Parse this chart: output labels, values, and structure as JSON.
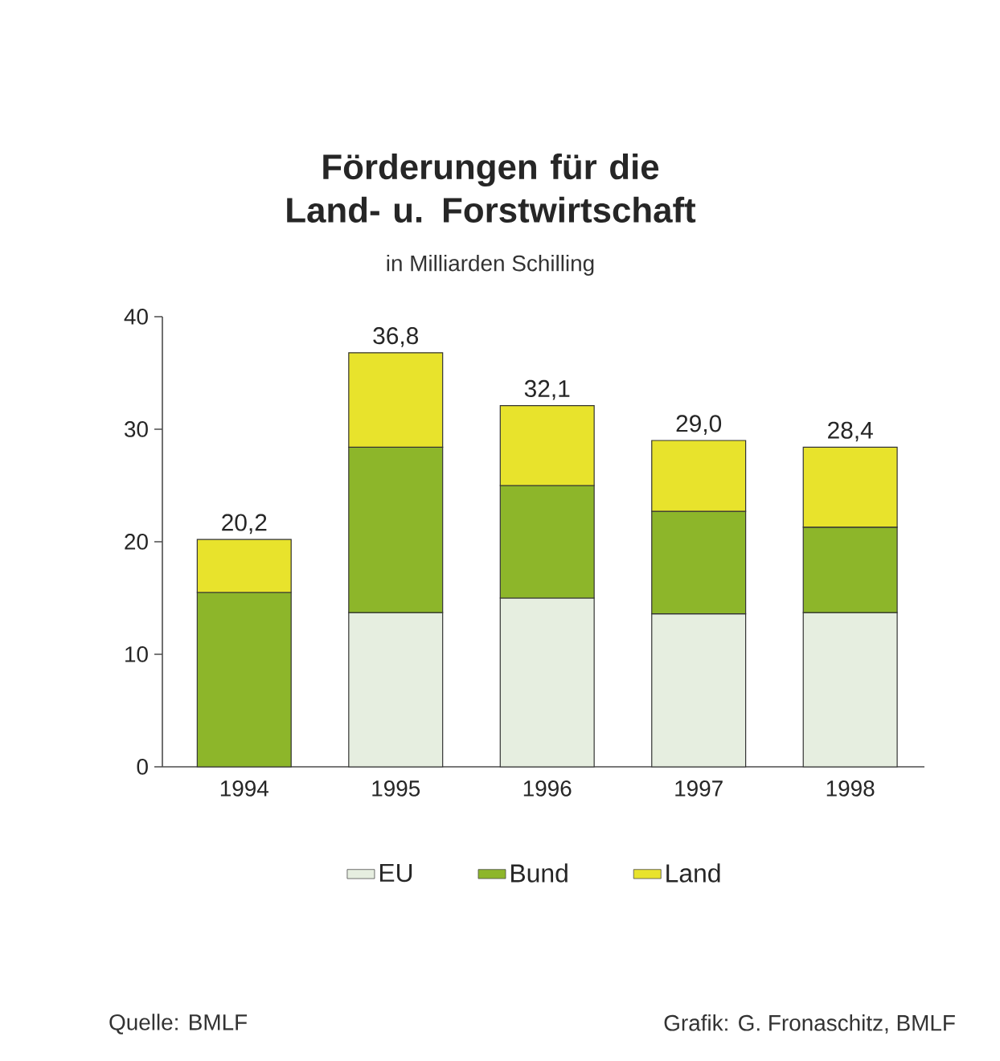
{
  "chart_data": {
    "type": "bar",
    "stacked": true,
    "title": "Förderungen für die Land- u. Forstwirtschaft",
    "subtitle": "in Milliarden Schilling",
    "categories": [
      "1994",
      "1995",
      "1996",
      "1997",
      "1998"
    ],
    "series": [
      {
        "name": "EU",
        "color": "#e6eee0",
        "values": [
          null,
          13.7,
          15.0,
          13.6,
          13.7
        ]
      },
      {
        "name": "Bund",
        "color": "#8db62a",
        "values": [
          15.5,
          14.7,
          10.0,
          9.1,
          7.6
        ]
      },
      {
        "name": "Land",
        "color": "#e8e32c",
        "values": [
          4.7,
          8.4,
          7.1,
          6.3,
          7.1
        ]
      }
    ],
    "totals": [
      "20,2",
      "36,8",
      "32,1",
      "29,0",
      "28,4"
    ],
    "ylim": [
      0,
      40
    ],
    "yticks": [
      0,
      10,
      20,
      30,
      40
    ],
    "grid": false,
    "legend": "bottom",
    "annotations": [
      "Quelle: BMLF",
      "Grafik: G. Fronaschitz, BMLF"
    ]
  }
}
